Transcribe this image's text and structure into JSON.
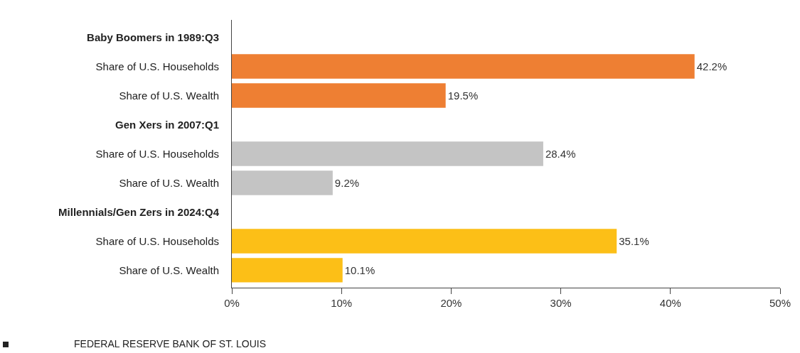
{
  "chart_data": {
    "type": "bar",
    "orientation": "horizontal",
    "categories": [
      "Baby Boomers in 1989:Q3",
      "Share of U.S. Households",
      "Share of U.S. Wealth",
      "Gen Xers in 2007:Q1",
      "Share of U.S. Households",
      "Share of U.S. Wealth",
      "Millennials/Gen Zers in 2024:Q4",
      "Share of U.S. Households",
      "Share of U.S. Wealth"
    ],
    "values": [
      null,
      42.2,
      19.5,
      null,
      28.4,
      9.2,
      null,
      35.1,
      10.1
    ],
    "colors": [
      null,
      "#ee7f33",
      "#ee7f33",
      null,
      "#c4c4c4",
      "#c4c4c4",
      null,
      "#fcbf17",
      "#fcbf17"
    ],
    "value_labels": [
      null,
      "42.2%",
      "19.5%",
      null,
      "28.4%",
      "9.2%",
      null,
      "35.1%",
      "10.1%"
    ],
    "xlim": [
      0,
      50
    ],
    "xticks": [
      {
        "value": 0,
        "label": "0%"
      },
      {
        "value": 10,
        "label": "10%"
      },
      {
        "value": 20,
        "label": "20%"
      },
      {
        "value": 30,
        "label": "30%"
      },
      {
        "value": 40,
        "label": "40%"
      },
      {
        "value": 50,
        "label": "50%"
      }
    ],
    "grid": false,
    "annotations": [
      "FEDERAL RESERVE BANK OF ST. LOUIS"
    ]
  }
}
